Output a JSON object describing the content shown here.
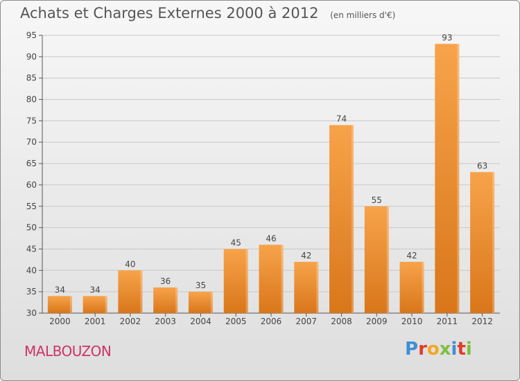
{
  "header": {
    "title": "Achats et Charges Externes 2000 à 2012",
    "subtitle": "(en milliers d'€)"
  },
  "footer": {
    "commune": "MALBOUZON",
    "logo_text": "Proxiti"
  },
  "colors": {
    "bar_light": "#f7a34a",
    "bar_dark": "#e0801f",
    "commune": "#cc3366"
  },
  "chart_data": {
    "type": "bar",
    "title": "Achats et Charges Externes 2000 à 2012",
    "subtitle": "(en milliers d'€)",
    "categories": [
      "2000",
      "2001",
      "2002",
      "2003",
      "2004",
      "2005",
      "2006",
      "2007",
      "2008",
      "2009",
      "2010",
      "2011",
      "2012"
    ],
    "values": [
      34,
      34,
      40,
      36,
      35,
      45,
      46,
      42,
      74,
      55,
      42,
      93,
      63
    ],
    "ylim": [
      30,
      95
    ],
    "yticks": [
      30,
      35,
      40,
      45,
      50,
      55,
      60,
      65,
      70,
      75,
      80,
      85,
      90,
      95
    ],
    "grid": true,
    "xlabel": "",
    "ylabel": ""
  }
}
